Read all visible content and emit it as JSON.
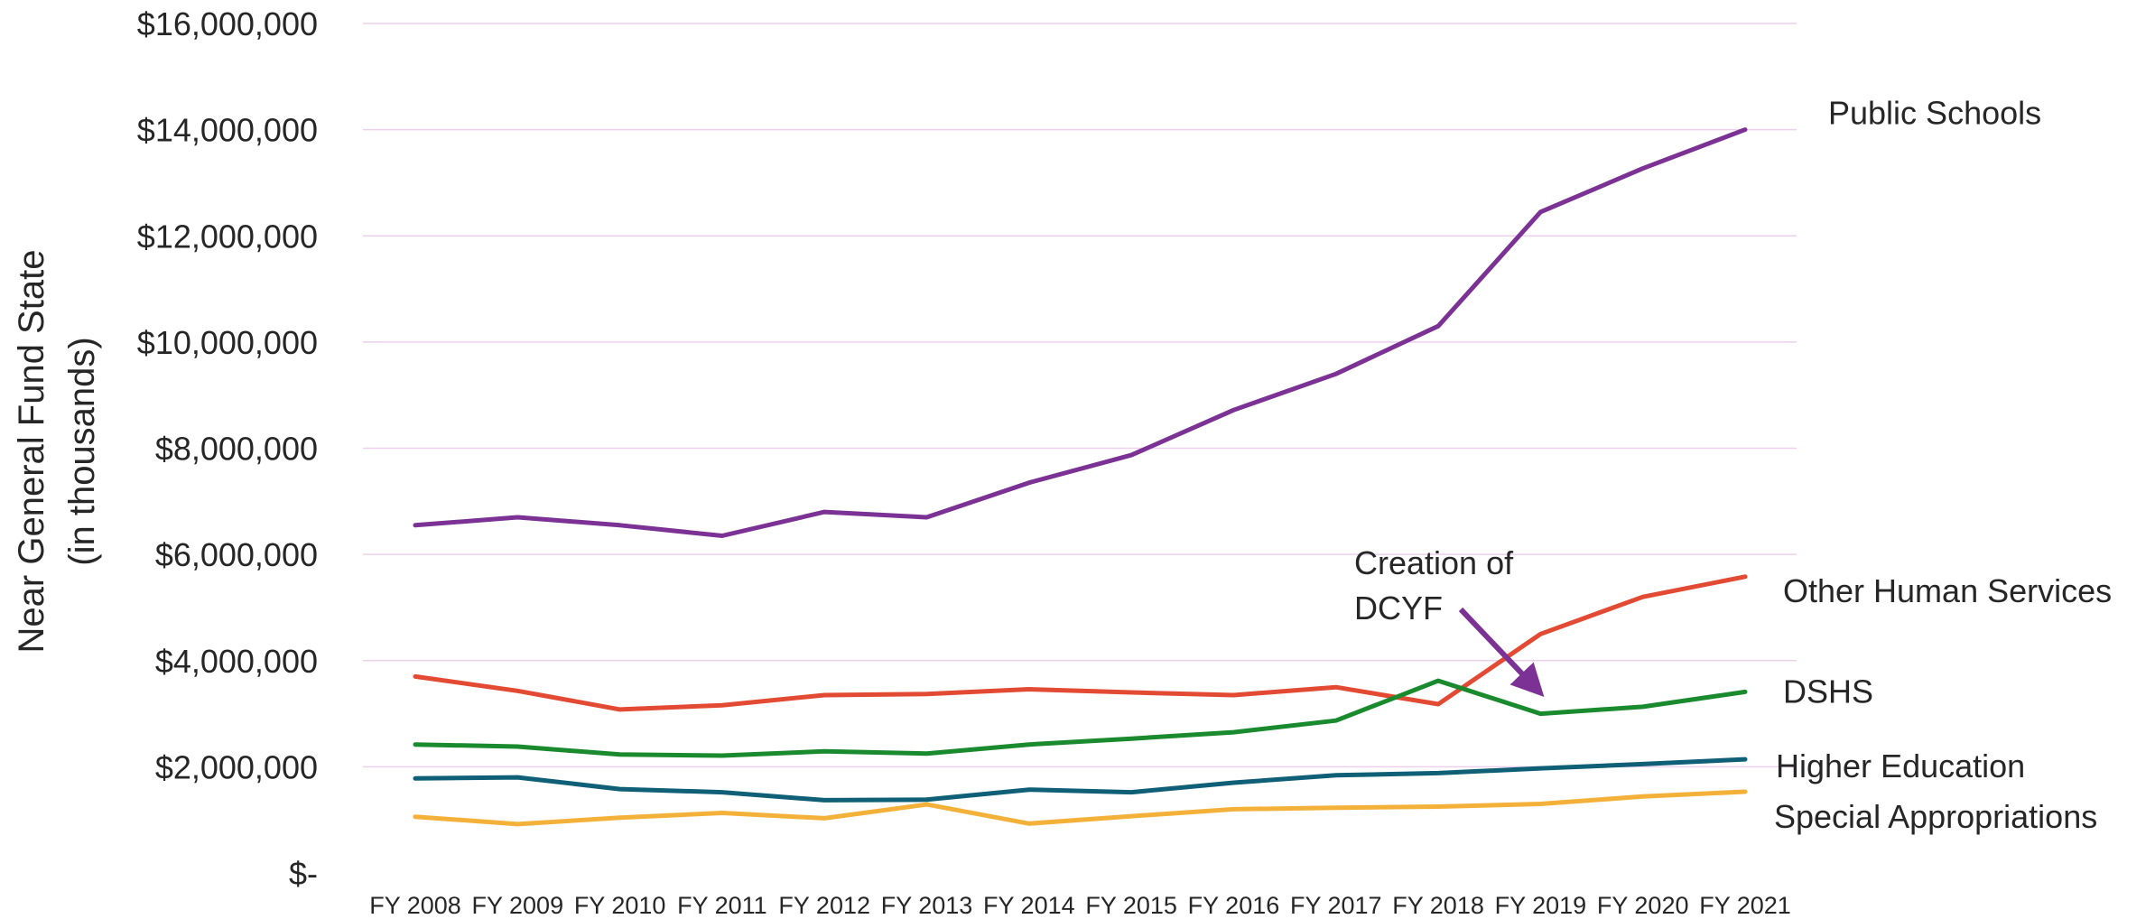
{
  "chart_data": {
    "type": "line",
    "title": "",
    "ylabel": [
      "Near General Fund State",
      "(in thousands)"
    ],
    "xlabel": "",
    "categories": [
      "FY 2008",
      "FY 2009",
      "FY 2010",
      "FY 2011",
      "FY 2012",
      "FY 2013",
      "FY 2014",
      "FY 2015",
      "FY 2016",
      "FY 2017",
      "FY 2018",
      "FY 2019",
      "FY 2020",
      "FY 2021"
    ],
    "ylim": [
      0,
      16000000
    ],
    "yticks": [
      0,
      2000000,
      4000000,
      6000000,
      8000000,
      10000000,
      12000000,
      14000000,
      16000000
    ],
    "ytick_labels": [
      "$-",
      "$2,000,000",
      "$4,000,000",
      "$6,000,000",
      "$8,000,000",
      "$10,000,000",
      "$12,000,000",
      "$14,000,000",
      "$16,000,000"
    ],
    "grid": true,
    "series": [
      {
        "name": "Public Schools",
        "color": "#7b3294",
        "values": [
          6550000,
          6700000,
          6550000,
          6350000,
          6800000,
          6700000,
          7350000,
          7870000,
          8720000,
          9400000,
          10300000,
          12450000,
          13270000,
          14000000
        ]
      },
      {
        "name": "Other Human Services",
        "color": "#e34a33",
        "values": [
          3700000,
          3430000,
          3080000,
          3160000,
          3350000,
          3370000,
          3460000,
          3400000,
          3350000,
          3500000,
          3180000,
          4500000,
          5200000,
          5580000
        ]
      },
      {
        "name": "DSHS",
        "color": "#1a8a2e",
        "values": [
          2420000,
          2380000,
          2230000,
          2210000,
          2290000,
          2250000,
          2420000,
          2530000,
          2650000,
          2870000,
          3620000,
          3000000,
          3130000,
          3410000
        ]
      },
      {
        "name": "Higher Education",
        "color": "#0f6076",
        "values": [
          1780000,
          1800000,
          1580000,
          1520000,
          1370000,
          1380000,
          1570000,
          1520000,
          1700000,
          1840000,
          1880000,
          1970000,
          2050000,
          2140000
        ]
      },
      {
        "name": "Special Appropriations",
        "color": "#f4b13a",
        "values": [
          1060000,
          920000,
          1040000,
          1130000,
          1030000,
          1290000,
          930000,
          1070000,
          1200000,
          1230000,
          1250000,
          1300000,
          1440000,
          1530000
        ]
      }
    ],
    "annotations": [
      {
        "text": [
          "Creation of",
          "DCYF"
        ],
        "color": "#7b3294"
      }
    ]
  }
}
